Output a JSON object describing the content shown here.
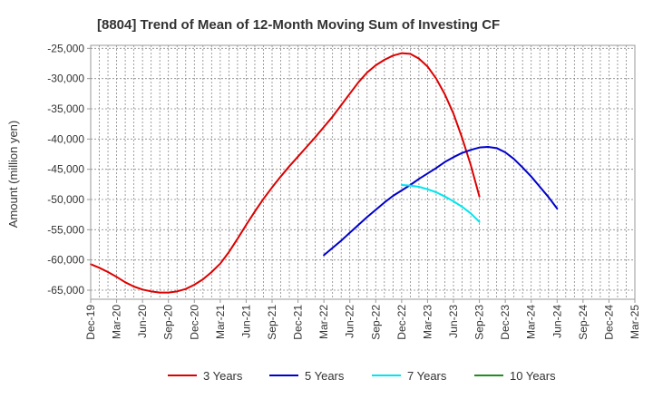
{
  "chart_data": {
    "type": "line",
    "title": "[8804]  Trend of Mean of 12-Month Moving Sum of Investing CF",
    "xlabel": "",
    "ylabel": "Amount (million yen)",
    "ylim": [
      -66500,
      -24500
    ],
    "yticks": [
      -25000,
      -30000,
      -35000,
      -40000,
      -45000,
      -50000,
      -55000,
      -60000,
      -65000
    ],
    "ytick_labels": [
      "-25,000",
      "-30,000",
      "-35,000",
      "-40,000",
      "-45,000",
      "-50,000",
      "-55,000",
      "-60,000",
      "-65,000"
    ],
    "x_tick_labels": [
      "Dec-19",
      "Mar-20",
      "Jun-20",
      "Sep-20",
      "Dec-20",
      "Mar-21",
      "Jun-21",
      "Sep-21",
      "Dec-21",
      "Mar-22",
      "Jun-22",
      "Sep-22",
      "Dec-22",
      "Mar-23",
      "Jun-23",
      "Sep-23",
      "Dec-23",
      "Mar-24",
      "Jun-24",
      "Sep-24",
      "Dec-24",
      "Mar-25"
    ],
    "grid": true,
    "legend_position": "bottom",
    "series": [
      {
        "name": "3 Years",
        "color": "#dd0000",
        "start_index": 0,
        "values": [
          -60700,
          -61300,
          -62000,
          -62800,
          -63700,
          -64400,
          -64900,
          -65200,
          -65400,
          -65400,
          -65200,
          -64800,
          -64100,
          -63200,
          -62000,
          -60600,
          -58700,
          -56500,
          -54200,
          -52000,
          -49900,
          -48000,
          -46200,
          -44500,
          -42900,
          -41300,
          -39700,
          -38000,
          -36300,
          -34400,
          -32500,
          -30600,
          -29000,
          -27800,
          -26900,
          -26200,
          -25800,
          -25900,
          -26700,
          -28000,
          -30000,
          -32600,
          -35800,
          -39800,
          -44300,
          -49500
        ]
      },
      {
        "name": "5 Years",
        "color": "#0000cc",
        "start_index": 27,
        "values": [
          -59200,
          -58000,
          -56800,
          -55500,
          -54200,
          -52900,
          -51700,
          -50500,
          -49400,
          -48500,
          -47600,
          -46600,
          -45700,
          -44800,
          -43800,
          -43000,
          -42300,
          -41800,
          -41400,
          -41300,
          -41500,
          -42200,
          -43300,
          -44700,
          -46200,
          -47900,
          -49600,
          -51500
        ]
      },
      {
        "name": "7 Years",
        "color": "#00e5ee",
        "start_index": 36,
        "values": [
          -47600,
          -47700,
          -47900,
          -48300,
          -48800,
          -49500,
          -50300,
          -51200,
          -52300,
          -53700
        ]
      },
      {
        "name": "10 Years",
        "color": "#228b22",
        "start_index": 0,
        "values": []
      }
    ]
  }
}
